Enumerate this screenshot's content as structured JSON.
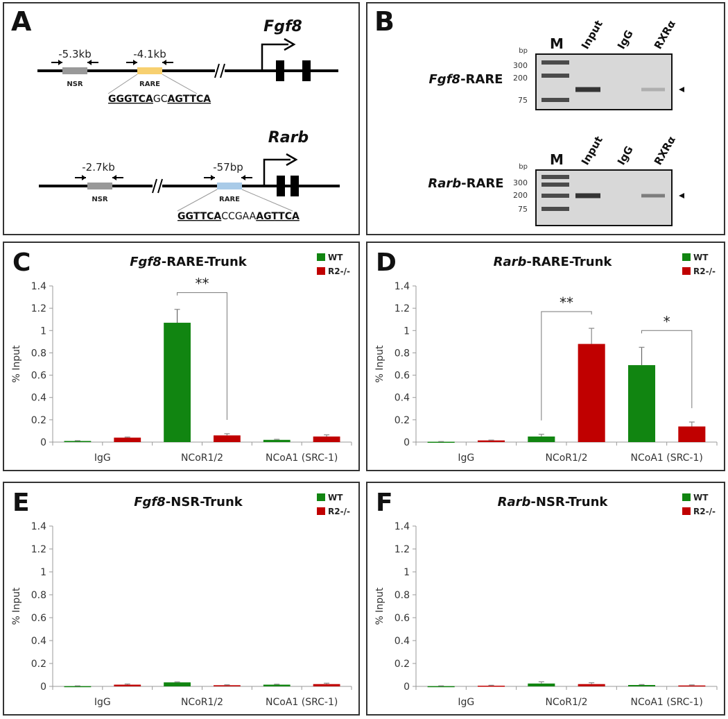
{
  "panels": {
    "A": {
      "label": "A",
      "genes": [
        {
          "name": "Fgf8",
          "nsr_pos": "-5.3kb",
          "rare_pos": "-4.1kb",
          "nsr_label": "NSR",
          "rare_label": "RARE",
          "rare_color": "#f7d070",
          "seq": [
            {
              "text": "GGGTCA",
              "bold": true
            },
            {
              "text": "GC",
              "bold": false
            },
            {
              "text": "AGTTCA",
              "bold": true
            }
          ]
        },
        {
          "name": "Rarb",
          "nsr_pos": "-2.7kb",
          "rare_pos": "-57bp",
          "nsr_label": "NSR",
          "rare_label": "RARE",
          "rare_color": "#a9cbe8",
          "seq": [
            {
              "text": "GGTTCA",
              "bold": true
            },
            {
              "text": "CCGAA",
              "bold": false
            },
            {
              "text": "AGTTCA",
              "bold": true
            }
          ]
        }
      ]
    },
    "B": {
      "label": "B",
      "lanes": [
        "M",
        "Input",
        "IgG",
        "RXRα"
      ],
      "bp_label": "bp",
      "markers": [
        "300",
        "200",
        "75"
      ],
      "gels": [
        {
          "gene": "Fgf8",
          "suffix": "-RARE"
        },
        {
          "gene": "Rarb",
          "suffix": "-RARE"
        }
      ]
    }
  },
  "legend": {
    "wt": "WT",
    "r2": "R2-/-"
  },
  "colors": {
    "wt": "#118511",
    "r2": "#c00000"
  },
  "chart_data": [
    {
      "panel": "C",
      "type": "bar",
      "title_gene": "Fgf8",
      "title_rest": "-RARE-Trunk",
      "ylabel": "% Input",
      "ylim": [
        0,
        1.4
      ],
      "yticks": [
        "0",
        "0.2",
        "0.4",
        "0.6",
        "0.8",
        "1",
        "1.2",
        "1.4"
      ],
      "categories": [
        "IgG",
        "NCoR1/2",
        "NCoA1 (SRC-1)"
      ],
      "series": [
        {
          "name": "WT",
          "values": [
            0.01,
            1.07,
            0.02
          ],
          "errors": [
            0.003,
            0.12,
            0.005
          ]
        },
        {
          "name": "R2-/-",
          "values": [
            0.04,
            0.06,
            0.05
          ],
          "errors": [
            0.005,
            0.015,
            0.015
          ]
        }
      ],
      "significance": [
        {
          "from": [
            1,
            0
          ],
          "to": [
            1,
            1
          ],
          "label": "**"
        }
      ]
    },
    {
      "panel": "D",
      "type": "bar",
      "title_gene": "Rarb",
      "title_rest": "-RARE-Trunk",
      "ylabel": "% Input",
      "ylim": [
        0,
        1.4
      ],
      "yticks": [
        "0",
        "0.2",
        "0.4",
        "0.6",
        "0.8",
        "1",
        "1.2",
        "1.4"
      ],
      "categories": [
        "IgG",
        "NCoR1/2",
        "NCoA1 (SRC-1)"
      ],
      "series": [
        {
          "name": "WT",
          "values": [
            0.003,
            0.05,
            0.69
          ],
          "errors": [
            0.002,
            0.02,
            0.16
          ]
        },
        {
          "name": "R2-/-",
          "values": [
            0.015,
            0.88,
            0.14
          ],
          "errors": [
            0.003,
            0.14,
            0.04
          ]
        }
      ],
      "significance": [
        {
          "from": [
            1,
            0
          ],
          "to": [
            1,
            1
          ],
          "label": "**"
        },
        {
          "from": [
            2,
            0
          ],
          "to": [
            2,
            1
          ],
          "label": "*"
        }
      ]
    },
    {
      "panel": "E",
      "type": "bar",
      "title_gene": "Fgf8",
      "title_rest": "-NSR-Trunk",
      "ylabel": "% Input",
      "ylim": [
        0,
        1.4
      ],
      "yticks": [
        "0",
        "0.2",
        "0.4",
        "0.6",
        "0.8",
        "1",
        "1.2",
        "1.4"
      ],
      "categories": [
        "IgG",
        "NCoR1/2",
        "NCoA1 (SRC-1)"
      ],
      "series": [
        {
          "name": "WT",
          "values": [
            0.002,
            0.035,
            0.015
          ],
          "errors": [
            0.003,
            0.004,
            0.004
          ]
        },
        {
          "name": "R2-/-",
          "values": [
            0.015,
            0.01,
            0.02
          ],
          "errors": [
            0.006,
            0.004,
            0.008
          ]
        }
      ],
      "significance": []
    },
    {
      "panel": "F",
      "type": "bar",
      "title_gene": "Rarb",
      "title_rest": "-NSR-Trunk",
      "ylabel": "% Input",
      "ylim": [
        0,
        1.4
      ],
      "yticks": [
        "0",
        "0.2",
        "0.4",
        "0.6",
        "0.8",
        "1",
        "1.2",
        "1.4"
      ],
      "categories": [
        "IgG",
        "NCoR1/2",
        "NCoA1 (SRC-1)"
      ],
      "series": [
        {
          "name": "WT",
          "values": [
            0.002,
            0.025,
            0.012
          ],
          "errors": [
            0.003,
            0.015,
            0.004
          ]
        },
        {
          "name": "R2-/-",
          "values": [
            0.006,
            0.02,
            0.008
          ],
          "errors": [
            0.004,
            0.012,
            0.005
          ]
        }
      ],
      "significance": []
    }
  ]
}
